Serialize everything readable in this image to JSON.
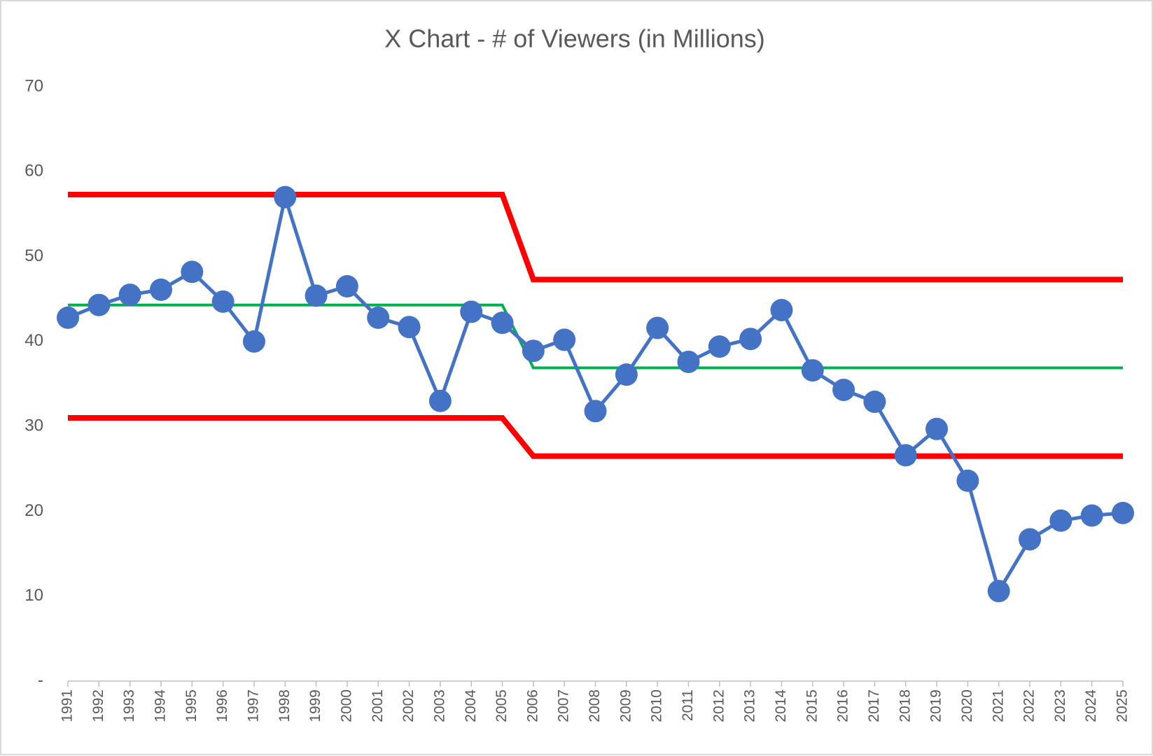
{
  "chart_data": {
    "type": "line",
    "title": "X Chart - # of Viewers (in Millions)",
    "categories": [
      "1991",
      "1992",
      "1993",
      "1994",
      "1995",
      "1996",
      "1997",
      "1998",
      "1999",
      "2000",
      "2001",
      "2002",
      "2003",
      "2004",
      "2005",
      "2006",
      "2007",
      "2008",
      "2009",
      "2010",
      "2011",
      "2012",
      "2013",
      "2014",
      "2015",
      "2016",
      "2017",
      "2018",
      "2019",
      "2020",
      "2021",
      "2022",
      "2023",
      "2024",
      "2025"
    ],
    "series": [
      {
        "color": "#ff0000",
        "width": 8,
        "values": [
          57.3,
          57.3,
          57.3,
          57.3,
          57.3,
          57.3,
          57.3,
          57.3,
          57.3,
          57.3,
          57.3,
          57.3,
          57.3,
          57.3,
          57.3,
          47.3,
          47.3,
          47.3,
          47.3,
          47.3,
          47.3,
          47.3,
          47.3,
          47.3,
          47.3,
          47.3,
          47.3,
          47.3,
          47.3,
          47.3,
          47.3,
          47.3,
          47.3,
          47.3,
          47.3
        ]
      },
      {
        "color": "#ff0000",
        "width": 8,
        "values": [
          31.0,
          31.0,
          31.0,
          31.0,
          31.0,
          31.0,
          31.0,
          31.0,
          31.0,
          31.0,
          31.0,
          31.0,
          31.0,
          31.0,
          31.0,
          26.5,
          26.5,
          26.5,
          26.5,
          26.5,
          26.5,
          26.5,
          26.5,
          26.5,
          26.5,
          26.5,
          26.5,
          26.5,
          26.5,
          26.5,
          26.5,
          26.5,
          26.5,
          26.5,
          26.5
        ]
      },
      {
        "color": "#00b050",
        "width": 4,
        "values": [
          44.3,
          44.3,
          44.3,
          44.3,
          44.3,
          44.3,
          44.3,
          44.3,
          44.3,
          44.3,
          44.3,
          44.3,
          44.3,
          44.3,
          44.3,
          36.9,
          36.9,
          36.9,
          36.9,
          36.9,
          36.9,
          36.9,
          36.9,
          36.9,
          36.9,
          36.9,
          36.9,
          36.9,
          36.9,
          36.9,
          36.9,
          36.9,
          36.9,
          36.9,
          36.9
        ]
      },
      {
        "color": "#4472c4",
        "width": 5,
        "markers": true,
        "values": [
          42.8,
          44.3,
          45.5,
          46.1,
          48.2,
          44.7,
          40.0,
          57.0,
          45.4,
          46.5,
          42.8,
          41.7,
          33.0,
          43.5,
          42.2,
          38.9,
          40.2,
          31.8,
          36.1,
          41.6,
          37.6,
          39.4,
          40.3,
          43.7,
          36.6,
          34.3,
          32.9,
          26.6,
          29.7,
          23.6,
          10.6,
          16.7,
          18.9,
          19.5,
          19.8
        ]
      }
    ],
    "ylim": [
      0,
      70
    ],
    "yticks": [
      {
        "value": 0,
        "label": "-"
      },
      10,
      20,
      30,
      40,
      50,
      60,
      70
    ],
    "grid": false
  }
}
